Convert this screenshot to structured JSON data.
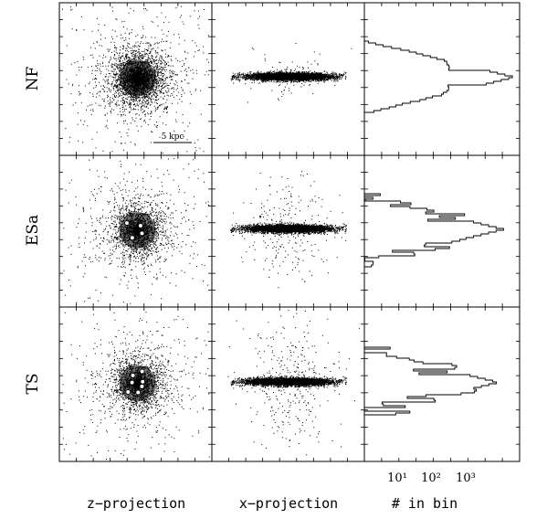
{
  "chart_data": {
    "type": "scatter",
    "rows": [
      "NF",
      "ESa",
      "TS"
    ],
    "columns": [
      "z−projection",
      "x−projection",
      "# in bin"
    ],
    "scale_bar_label": "5 kpc",
    "histogram_x_ticks": [
      "10¹",
      "10²",
      "10³"
    ],
    "histogram_x_log_range": [
      0.5,
      3.4
    ],
    "histogram_x_scale": "log",
    "panels": [
      {
        "row": "NF",
        "disk_clumps": 0,
        "histogram_noise": 0.05,
        "peak_log_count": 3.3
      },
      {
        "row": "ESa",
        "disk_clumps": 4,
        "histogram_noise": 0.5,
        "peak_log_count": 3.1
      },
      {
        "row": "TS",
        "disk_clumps": 7,
        "histogram_noise": 0.8,
        "peak_log_count": 3.0
      }
    ],
    "colors": {
      "points": "#000000",
      "frame": "#000000",
      "background": "#ffffff"
    }
  }
}
